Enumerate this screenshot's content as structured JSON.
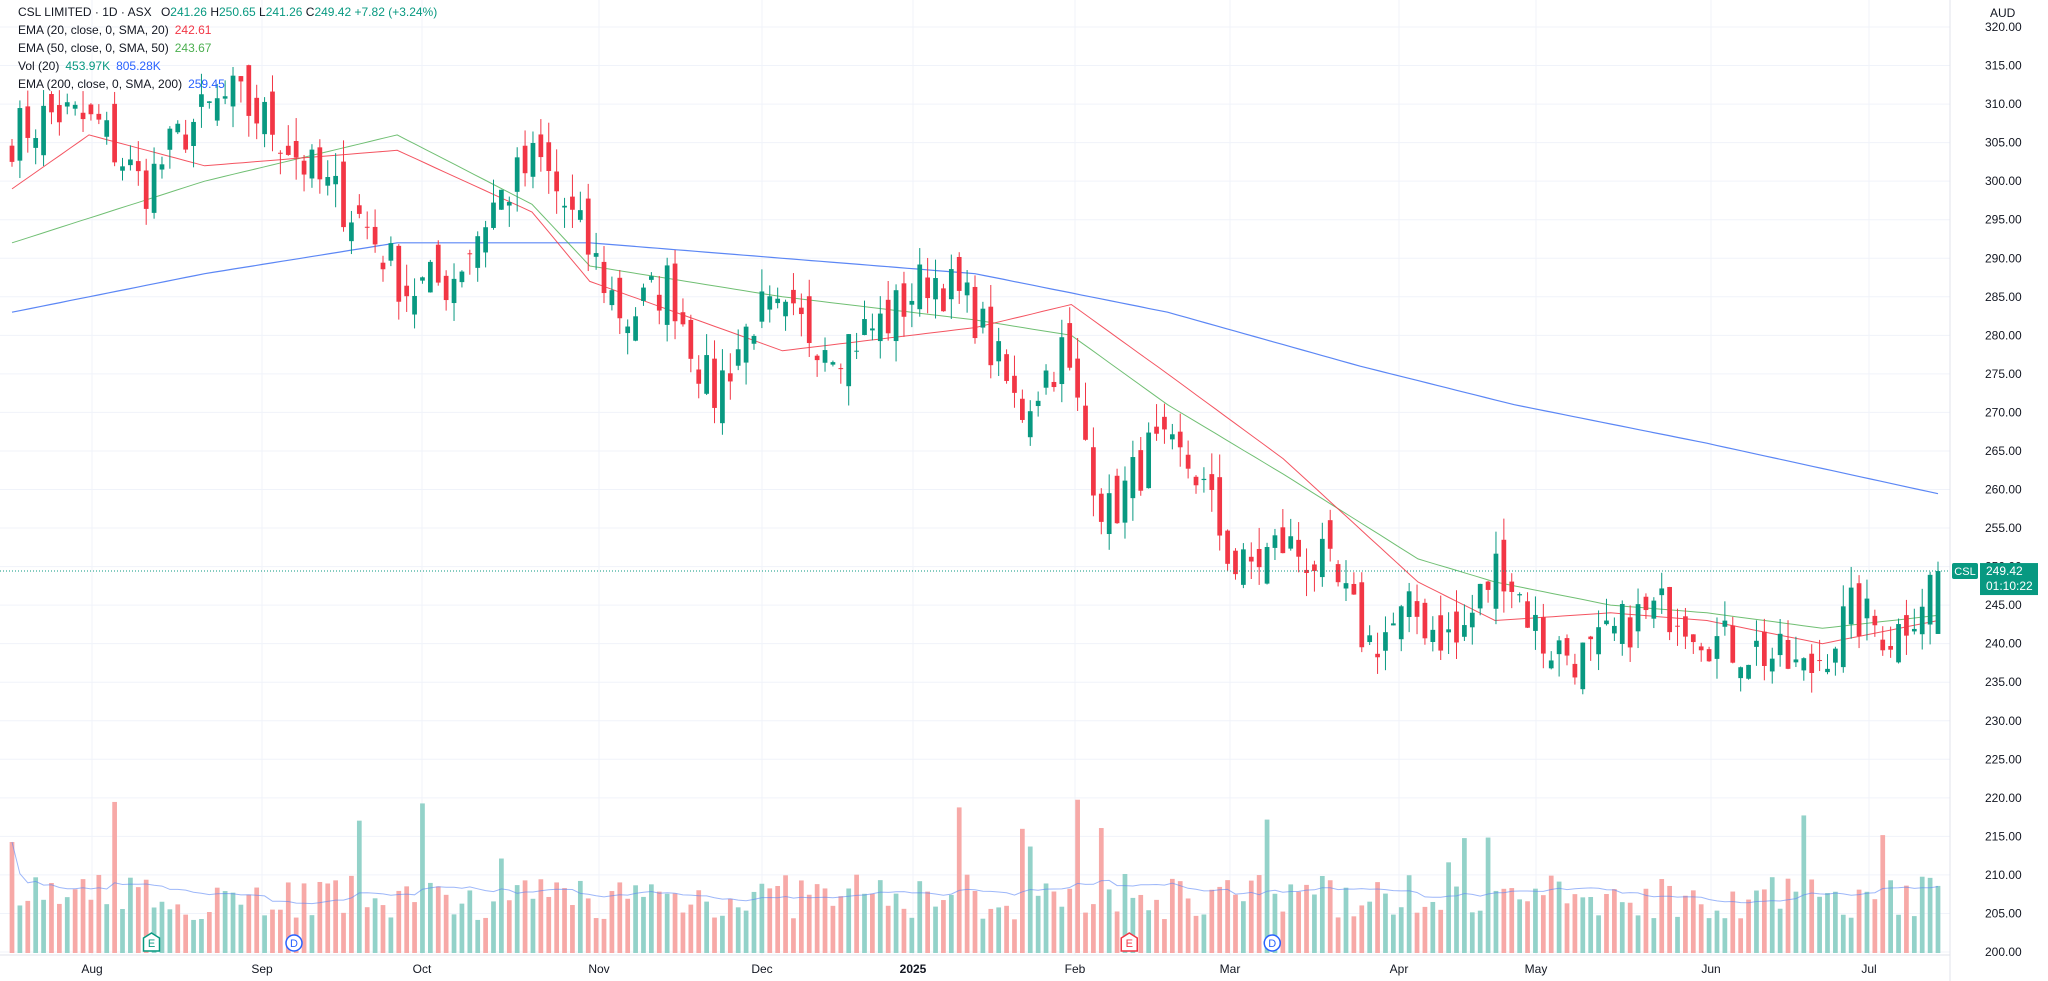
{
  "legend": {
    "symbol": "CSL LIMITED · 1D · ASX",
    "ohlc": {
      "o_label": "O",
      "o": "241.26",
      "h_label": "H",
      "h": "250.65",
      "l_label": "L",
      "l": "241.26",
      "c_label": "C",
      "c": "249.42",
      "change": "+7.82 (+3.24%)"
    },
    "indicators": [
      {
        "label": "EMA (20, close, 0, SMA, 20)",
        "value": "242.61",
        "color": "#f23645"
      },
      {
        "label": "EMA (50, close, 0, SMA, 50)",
        "value": "243.67",
        "color": "#4caf50"
      },
      {
        "label": "Vol (20)",
        "value": "453.97K",
        "value2": "805.28K",
        "color": "#089981",
        "color2": "#2962ff"
      },
      {
        "label": "EMA (200, close, 0, SMA, 200)",
        "value": "259.45",
        "color": "#2962ff"
      }
    ]
  },
  "currency": "AUD",
  "price_tag": {
    "symbol": "CSL",
    "price": "249.42",
    "countdown": "01:10:22"
  },
  "markers": [
    {
      "letter": "E",
      "kind": "earnings",
      "month": "Aug",
      "offset": 0.35,
      "color": "#089981"
    },
    {
      "letter": "D",
      "kind": "dividend",
      "month": "Sep",
      "offset": 0.2,
      "color": "#2962ff"
    },
    {
      "letter": "E",
      "kind": "earnings",
      "month": "Feb",
      "offset": 0.35,
      "color": "#f23645"
    },
    {
      "letter": "D",
      "kind": "dividend",
      "month": "Mar",
      "offset": 0.25,
      "color": "#2962ff"
    }
  ],
  "chart_data": {
    "type": "candlestick",
    "title": "CSL LIMITED · 1D · ASX",
    "y_axis": {
      "min": 200,
      "max": 320,
      "step": 5,
      "position": "right",
      "unit": "AUD"
    },
    "x_axis": {
      "labels": [
        "Aug",
        "Sep",
        "Oct",
        "Nov",
        "Dec",
        "2025",
        "Feb",
        "Mar",
        "Apr",
        "May",
        "Jun",
        "Jul"
      ]
    },
    "grid": true,
    "colors": {
      "up": "#089981",
      "down": "#f23645",
      "vol_up": "#93d2c9",
      "vol_down": "#f7a9a7"
    },
    "price_anchors": [
      [
        "Jul",
        306
      ],
      [
        "Jul",
        309
      ],
      [
        "Aug",
        307
      ],
      [
        "Aug",
        299
      ],
      [
        "Aug",
        307
      ],
      [
        "Aug",
        311
      ],
      [
        "Sep",
        307
      ],
      [
        "Sep",
        300
      ],
      [
        "Sep",
        295
      ],
      [
        "Oct",
        286
      ],
      [
        "Oct",
        287
      ],
      [
        "Oct",
        297
      ],
      [
        "Oct",
        303
      ],
      [
        "Oct",
        293
      ],
      [
        "Nov",
        282
      ],
      [
        "Nov",
        287
      ],
      [
        "Nov",
        272
      ],
      [
        "Dec",
        283
      ],
      [
        "Dec",
        281
      ],
      [
        "Dec",
        279
      ],
      [
        "Dec",
        282
      ],
      [
        "2025",
        288
      ],
      [
        "2025",
        283
      ],
      [
        "Feb",
        270
      ],
      [
        "Feb",
        278
      ],
      [
        "Feb",
        256
      ],
      [
        "Feb",
        265
      ],
      [
        "Mar",
        263
      ],
      [
        "Mar",
        249
      ],
      [
        "Mar",
        253
      ],
      [
        "Apr",
        250
      ],
      [
        "Apr",
        240
      ],
      [
        "Apr",
        244
      ],
      [
        "Apr",
        240
      ],
      [
        "May",
        251
      ],
      [
        "May",
        240
      ],
      [
        "May",
        238
      ],
      [
        "Jun",
        243
      ],
      [
        "Jun",
        245
      ],
      [
        "Jun",
        240
      ],
      [
        "Jun",
        239
      ],
      [
        "Jul",
        236
      ],
      [
        "Jul",
        244
      ],
      [
        "Jul",
        241
      ],
      [
        "Jul",
        249.42
      ]
    ],
    "ema20_anchors": [
      [
        0,
        299
      ],
      [
        0.04,
        306
      ],
      [
        0.1,
        302
      ],
      [
        0.2,
        304
      ],
      [
        0.27,
        296
      ],
      [
        0.3,
        287
      ],
      [
        0.4,
        278
      ],
      [
        0.5,
        281
      ],
      [
        0.55,
        284
      ],
      [
        0.6,
        275
      ],
      [
        0.66,
        264
      ],
      [
        0.73,
        248
      ],
      [
        0.77,
        243
      ],
      [
        0.83,
        244
      ],
      [
        0.88,
        243
      ],
      [
        0.94,
        240
      ],
      [
        1,
        243
      ]
    ],
    "ema50_anchors": [
      [
        0,
        292
      ],
      [
        0.1,
        300
      ],
      [
        0.2,
        306
      ],
      [
        0.27,
        297
      ],
      [
        0.3,
        289
      ],
      [
        0.4,
        285
      ],
      [
        0.5,
        282
      ],
      [
        0.55,
        280
      ],
      [
        0.6,
        271
      ],
      [
        0.66,
        262
      ],
      [
        0.73,
        251
      ],
      [
        0.77,
        248
      ],
      [
        0.83,
        245
      ],
      [
        0.88,
        244
      ],
      [
        0.94,
        242
      ],
      [
        1,
        243.67
      ]
    ],
    "ema200_anchors": [
      [
        0,
        283
      ],
      [
        0.1,
        288
      ],
      [
        0.2,
        292
      ],
      [
        0.3,
        292
      ],
      [
        0.4,
        290
      ],
      [
        0.5,
        288
      ],
      [
        0.6,
        283
      ],
      [
        0.7,
        276
      ],
      [
        0.78,
        271
      ],
      [
        0.88,
        266
      ],
      [
        1,
        259.45
      ]
    ],
    "volume_note": "volume histogram in lower band with Vol(20) average line"
  }
}
